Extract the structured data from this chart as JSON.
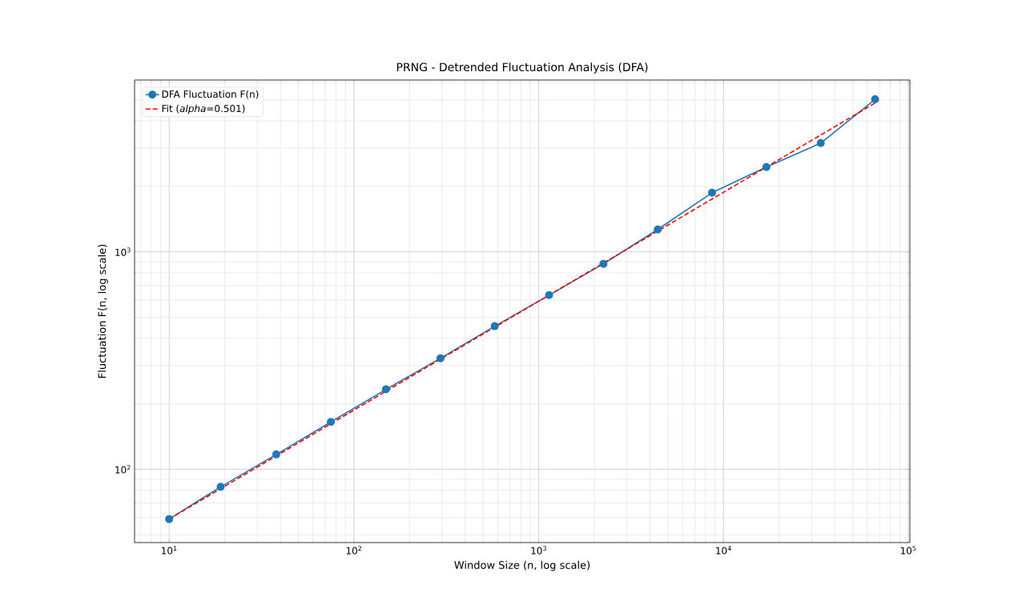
{
  "chart_data": {
    "type": "line",
    "title": "PRNG - Detrended Fluctuation Analysis (DFA)",
    "xlabel": "Window Size (n, log scale)",
    "ylabel": "Fluctuation F(n, log scale)",
    "log": "xy",
    "grid": true,
    "legend": "top left",
    "xlim": [
      6.5,
      102000
    ],
    "ylim": [
      46,
      6170
    ],
    "xticks": [
      {
        "value": 10,
        "label": "10$^{1}$"
      },
      {
        "value": 100,
        "label": "10$^{2}$"
      },
      {
        "value": 1000,
        "label": "10$^{3}$"
      },
      {
        "value": 10000,
        "label": "10$^{4}$"
      },
      {
        "value": 100000,
        "label": "10$^{5}$"
      }
    ],
    "yticks": [
      {
        "value": 100,
        "label": "10$^{2}$"
      },
      {
        "value": 1000,
        "label": "10$^{3}$"
      }
    ],
    "series": [
      {
        "name": "DFA Fluctuation F(n)",
        "color": "#1f77b4",
        "marker": "circle",
        "line_style": "solid",
        "x": [
          10,
          19,
          38,
          75,
          149,
          294,
          578,
          1138,
          2240,
          4406,
          8670,
          17068,
          33598,
          66139
        ],
        "values": [
          59,
          83,
          117,
          165,
          233,
          324,
          455,
          632,
          881,
          1267,
          1871,
          2453,
          3164,
          5033
        ]
      },
      {
        "name": "Fit (*alpha*=0.501)",
        "color": "#ff0000",
        "marker": "none",
        "line_style": "dashed",
        "x": [
          10,
          66139
        ],
        "values": [
          59,
          4840
        ]
      }
    ]
  }
}
